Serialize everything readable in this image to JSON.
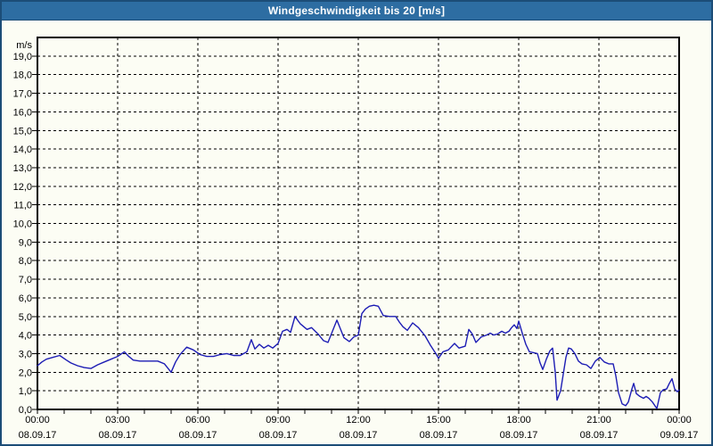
{
  "window": {
    "title": "Windgeschwindigkeit bis 20 [m/s]"
  },
  "colors": {
    "titlebar_bg": "#2d6da2",
    "titlebar_text": "#ffffff",
    "window_border": "#1c4d77",
    "content_bg": "#fcfdf4",
    "grid_color": "#000000",
    "axis_text": "#000000",
    "line_color": "#1c1cb4"
  },
  "chart_data": {
    "type": "line",
    "title": "Windgeschwindigkeit bis 20 [m/s]",
    "ylabel": "m/s",
    "xlabel": "",
    "ylim": [
      0,
      20
    ],
    "ytick_step": 1.0,
    "grid": "dashed",
    "legend": "none",
    "y_tick_labels": [
      "0,0",
      "1,0",
      "2,0",
      "3,0",
      "4,0",
      "5,0",
      "6,0",
      "7,0",
      "8,0",
      "9,0",
      "10,0",
      "11,0",
      "12,0",
      "13,0",
      "14,0",
      "15,0",
      "16,0",
      "17,0",
      "18,0",
      "19,0"
    ],
    "x_axis": {
      "range_hours": [
        0,
        24
      ],
      "minor_tick_hours": 1,
      "major_tick_hours": 3,
      "ticks": [
        {
          "time": "00:00",
          "date": "08.09.17"
        },
        {
          "time": "03:00",
          "date": "08.09.17"
        },
        {
          "time": "06:00",
          "date": "08.09.17"
        },
        {
          "time": "09:00",
          "date": "08.09.17"
        },
        {
          "time": "12:00",
          "date": "08.09.17"
        },
        {
          "time": "15:00",
          "date": "08.09.17"
        },
        {
          "time": "18:00",
          "date": "08.09.17"
        },
        {
          "time": "21:00",
          "date": "08.09.17"
        },
        {
          "time": "00:00",
          "date": "09.09.17"
        }
      ]
    },
    "series": [
      {
        "name": "Windgeschwindigkeit",
        "unit": "m/s",
        "color": "#1c1cb4",
        "points": [
          [
            "00:00",
            2.35
          ],
          [
            "00:10",
            2.55
          ],
          [
            "00:20",
            2.7
          ],
          [
            "00:35",
            2.8
          ],
          [
            "00:50",
            2.9
          ],
          [
            "01:05",
            2.65
          ],
          [
            "01:15",
            2.5
          ],
          [
            "01:30",
            2.35
          ],
          [
            "01:45",
            2.25
          ],
          [
            "02:00",
            2.2
          ],
          [
            "02:15",
            2.4
          ],
          [
            "02:30",
            2.55
          ],
          [
            "02:45",
            2.7
          ],
          [
            "03:00",
            2.85
          ],
          [
            "03:15",
            3.1
          ],
          [
            "03:25",
            2.85
          ],
          [
            "03:35",
            2.65
          ],
          [
            "03:50",
            2.6
          ],
          [
            "04:10",
            2.6
          ],
          [
            "04:30",
            2.6
          ],
          [
            "04:45",
            2.45
          ],
          [
            "05:00",
            2.0
          ],
          [
            "05:10",
            2.55
          ],
          [
            "05:20",
            2.95
          ],
          [
            "05:35",
            3.35
          ],
          [
            "05:50",
            3.2
          ],
          [
            "06:05",
            2.95
          ],
          [
            "06:20",
            2.85
          ],
          [
            "06:35",
            2.85
          ],
          [
            "06:50",
            2.95
          ],
          [
            "07:05",
            3.0
          ],
          [
            "07:20",
            2.9
          ],
          [
            "07:35",
            2.9
          ],
          [
            "07:50",
            3.1
          ],
          [
            "08:00",
            3.75
          ],
          [
            "08:08",
            3.25
          ],
          [
            "08:18",
            3.5
          ],
          [
            "08:28",
            3.3
          ],
          [
            "08:38",
            3.45
          ],
          [
            "08:48",
            3.3
          ],
          [
            "09:00",
            3.55
          ],
          [
            "09:10",
            4.2
          ],
          [
            "09:20",
            4.3
          ],
          [
            "09:28",
            4.15
          ],
          [
            "09:38",
            5.0
          ],
          [
            "09:50",
            4.6
          ],
          [
            "10:05",
            4.3
          ],
          [
            "10:15",
            4.4
          ],
          [
            "10:30",
            4.05
          ],
          [
            "10:42",
            3.7
          ],
          [
            "10:52",
            3.6
          ],
          [
            "11:12",
            4.8
          ],
          [
            "11:28",
            3.85
          ],
          [
            "11:40",
            3.65
          ],
          [
            "11:50",
            3.9
          ],
          [
            "12:00",
            4.0
          ],
          [
            "12:08",
            5.15
          ],
          [
            "12:16",
            5.4
          ],
          [
            "12:25",
            5.55
          ],
          [
            "12:35",
            5.6
          ],
          [
            "12:45",
            5.55
          ],
          [
            "12:56",
            5.05
          ],
          [
            "13:10",
            5.0
          ],
          [
            "13:24",
            5.0
          ],
          [
            "13:32",
            4.7
          ],
          [
            "13:40",
            4.45
          ],
          [
            "13:50",
            4.25
          ],
          [
            "14:02",
            4.65
          ],
          [
            "14:15",
            4.4
          ],
          [
            "14:30",
            3.95
          ],
          [
            "14:42",
            3.45
          ],
          [
            "14:54",
            3.0
          ],
          [
            "15:00",
            2.75
          ],
          [
            "15:10",
            3.1
          ],
          [
            "15:22",
            3.2
          ],
          [
            "15:36",
            3.55
          ],
          [
            "15:46",
            3.3
          ],
          [
            "16:00",
            3.4
          ],
          [
            "16:08",
            4.3
          ],
          [
            "16:16",
            4.05
          ],
          [
            "16:24",
            3.6
          ],
          [
            "16:36",
            3.9
          ],
          [
            "16:48",
            4.0
          ],
          [
            "16:56",
            4.1
          ],
          [
            "17:04",
            4.0
          ],
          [
            "17:12",
            4.05
          ],
          [
            "17:22",
            4.2
          ],
          [
            "17:30",
            4.1
          ],
          [
            "17:38",
            4.2
          ],
          [
            "17:44",
            4.4
          ],
          [
            "17:50",
            4.55
          ],
          [
            "17:56",
            4.35
          ],
          [
            "18:00",
            4.75
          ],
          [
            "18:08",
            4.1
          ],
          [
            "18:16",
            3.5
          ],
          [
            "18:24",
            3.1
          ],
          [
            "18:34",
            3.05
          ],
          [
            "18:42",
            3.0
          ],
          [
            "18:48",
            2.5
          ],
          [
            "18:54",
            2.15
          ],
          [
            "19:02",
            2.7
          ],
          [
            "19:10",
            3.15
          ],
          [
            "19:16",
            3.3
          ],
          [
            "19:22",
            2.0
          ],
          [
            "19:26",
            0.5
          ],
          [
            "19:34",
            1.0
          ],
          [
            "19:40",
            1.9
          ],
          [
            "19:46",
            2.8
          ],
          [
            "19:52",
            3.3
          ],
          [
            "19:58",
            3.25
          ],
          [
            "20:06",
            3.0
          ],
          [
            "20:14",
            2.6
          ],
          [
            "20:22",
            2.45
          ],
          [
            "20:32",
            2.4
          ],
          [
            "20:42",
            2.2
          ],
          [
            "20:52",
            2.6
          ],
          [
            "21:02",
            2.8
          ],
          [
            "21:12",
            2.55
          ],
          [
            "21:22",
            2.45
          ],
          [
            "21:32",
            2.45
          ],
          [
            "21:38",
            1.8
          ],
          [
            "21:44",
            0.9
          ],
          [
            "21:52",
            0.3
          ],
          [
            "22:00",
            0.2
          ],
          [
            "22:06",
            0.4
          ],
          [
            "22:14",
            1.1
          ],
          [
            "22:18",
            1.4
          ],
          [
            "22:24",
            0.85
          ],
          [
            "22:32",
            0.7
          ],
          [
            "22:40",
            0.6
          ],
          [
            "22:46",
            0.7
          ],
          [
            "22:52",
            0.6
          ],
          [
            "23:00",
            0.4
          ],
          [
            "23:10",
            0.05
          ],
          [
            "23:18",
            0.9
          ],
          [
            "23:24",
            1.05
          ],
          [
            "23:32",
            1.1
          ],
          [
            "23:38",
            1.4
          ],
          [
            "23:44",
            1.65
          ],
          [
            "23:50",
            1.1
          ],
          [
            "23:56",
            0.95
          ],
          [
            "24:00",
            1.05
          ]
        ]
      }
    ]
  }
}
